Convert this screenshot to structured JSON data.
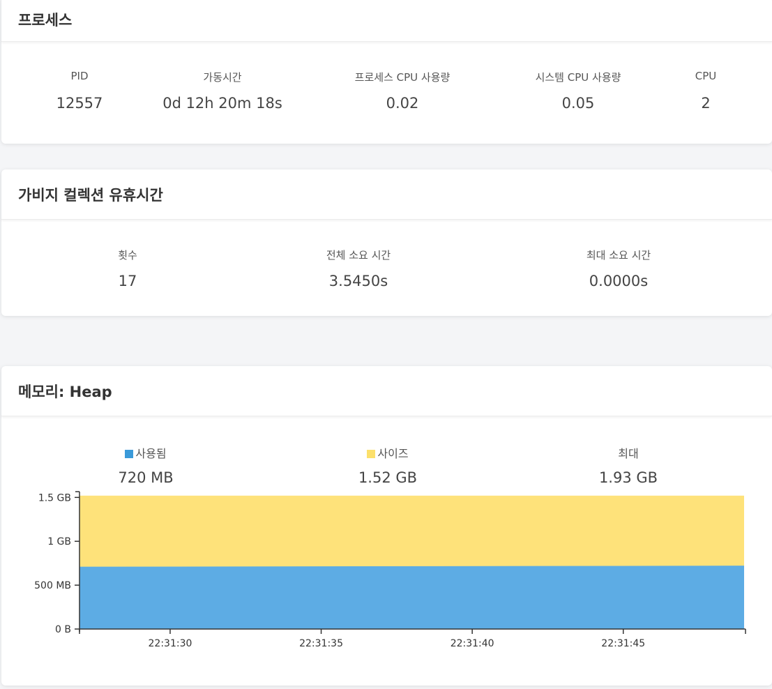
{
  "process": {
    "title": "프로세스",
    "stats": [
      {
        "label": "PID",
        "value": "12557"
      },
      {
        "label": "가동시간",
        "value": "0d 12h 20m 18s"
      },
      {
        "label": "프로세스 CPU 사용량",
        "value": "0.02"
      },
      {
        "label": "시스템 CPU 사용량",
        "value": "0.05"
      },
      {
        "label": "CPU",
        "value": "2"
      }
    ]
  },
  "gc": {
    "title": "가비지 컬렉션 유휴시간",
    "stats": [
      {
        "label": "횟수",
        "value": "17"
      },
      {
        "label": "전체 소요 시간",
        "value": "3.5450s"
      },
      {
        "label": "최대 소요 시간",
        "value": "0.0000s"
      }
    ]
  },
  "heap": {
    "title": "메모리: Heap",
    "stats": [
      {
        "label": "사용됨",
        "value": "720 MB",
        "color": "#3a9ad9"
      },
      {
        "label": "사이즈",
        "value": "1.52 GB",
        "color": "#fce06b"
      },
      {
        "label": "최대",
        "value": "1.93 GB"
      }
    ]
  },
  "chart_data": {
    "type": "area",
    "colors": {
      "used": "#5dace4",
      "size": "#fee27a"
    },
    "x": [
      "22:31:27",
      "22:31:49"
    ],
    "x_ticks": [
      "22:31:30",
      "22:31:35",
      "22:31:40",
      "22:31:45"
    ],
    "y_ticks": [
      "0 B",
      "500 MB",
      "1 GB",
      "1.5 GB"
    ],
    "y_unit": "MB",
    "ylim": [
      0,
      1550
    ],
    "series": [
      {
        "name": "사용됨",
        "values": [
          710,
          722
        ]
      },
      {
        "name": "사이즈",
        "values": [
          1520,
          1520
        ]
      }
    ]
  }
}
